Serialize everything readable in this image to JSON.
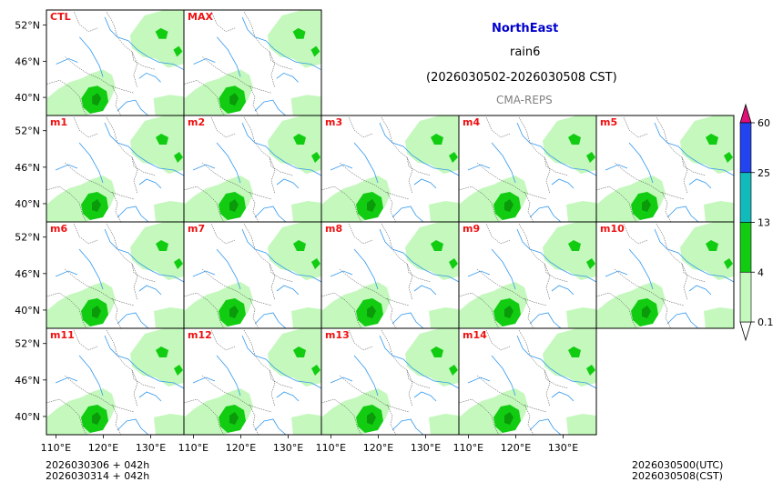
{
  "title": {
    "region": "NorthEast",
    "variable": "rain6",
    "period": "(2026030502-2026030508 CST)",
    "source": "CMA-REPS"
  },
  "footer_left": [
    "2026030306  +  042h",
    "2026030314  +  042h"
  ],
  "footer_right": [
    "2026030500(UTC)",
    "2026030508(CST)"
  ],
  "colors": {
    "panel_label": "#ee1111",
    "light_green": "#c4f8bd",
    "green": "#11cc11",
    "dark_green": "#0a9a0a",
    "cyan": "#11bbbb",
    "blue": "#2244ee",
    "magenta": "#dd1177",
    "river": "#3399ee",
    "border": "#444444"
  },
  "chart_data": {
    "type": "map-panels",
    "panel_labels": [
      "CTL",
      "MAX",
      "m1",
      "m2",
      "m3",
      "m4",
      "m5",
      "m6",
      "m7",
      "m8",
      "m9",
      "m10",
      "m11",
      "m12",
      "m13",
      "m14"
    ],
    "lon_ticks": [
      "110°E",
      "120°E",
      "130°E"
    ],
    "lat_ticks": [
      "52°N",
      "46°N",
      "40°N"
    ],
    "lon_range": [
      108,
      137
    ],
    "lat_range": [
      37,
      54.5
    ],
    "colorbar": {
      "levels": [
        "0.1",
        "4",
        "13",
        "25",
        "60"
      ],
      "colors": [
        "#c4f8bd",
        "#11cc11",
        "#11bbbb",
        "#2244ee"
      ],
      "extend": "both"
    }
  }
}
